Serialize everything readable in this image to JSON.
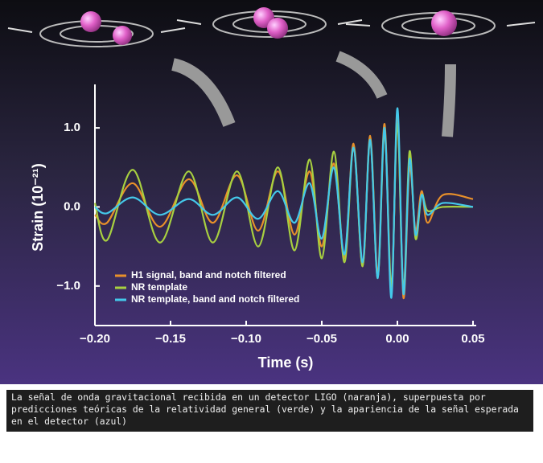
{
  "chart_data": {
    "type": "line",
    "xlabel": "Time (s)",
    "ylabel": "Strain (10⁻²¹)",
    "x": [
      -0.2,
      -0.192,
      -0.175,
      -0.157,
      -0.138,
      -0.122,
      -0.106,
      -0.092,
      -0.079,
      -0.068,
      -0.058,
      -0.05,
      -0.042,
      -0.035,
      -0.029,
      -0.023,
      -0.018,
      -0.013,
      -0.0085,
      -0.004,
      0,
      0.004,
      0.008,
      0.012,
      0.016,
      0.02,
      0.03,
      0.05
    ],
    "series": [
      {
        "name": "H1 signal, band and notch filtered",
        "color": "#e8902a",
        "values": [
          -0.1,
          -0.2,
          0.3,
          -0.25,
          0.35,
          -0.2,
          0.4,
          -0.3,
          0.45,
          -0.35,
          0.45,
          -0.5,
          0.55,
          -0.65,
          0.8,
          -0.75,
          0.9,
          -0.85,
          1.05,
          -1.1,
          1.15,
          -1.15,
          0.5,
          -0.3,
          0.2,
          -0.2,
          0.15,
          0.1
        ]
      },
      {
        "name": "NR template",
        "color": "#a8d040",
        "values": [
          0.05,
          -0.42,
          0.47,
          -0.45,
          0.45,
          -0.45,
          0.45,
          -0.5,
          0.5,
          -0.55,
          0.6,
          -0.65,
          0.7,
          -0.7,
          0.75,
          -0.75,
          0.85,
          -0.9,
          0.95,
          -1.0,
          1.05,
          -1.05,
          0.7,
          -0.4,
          0.15,
          -0.05,
          0.0,
          0.0
        ]
      },
      {
        "name": "NR template, band and notch filtered",
        "color": "#44c8ea",
        "values": [
          0.0,
          -0.08,
          0.12,
          -0.1,
          0.1,
          -0.1,
          0.12,
          -0.15,
          0.2,
          -0.2,
          0.3,
          -0.4,
          0.5,
          -0.6,
          0.75,
          -0.7,
          0.85,
          -0.9,
          1.0,
          -1.15,
          1.25,
          -1.1,
          0.6,
          -0.35,
          0.15,
          -0.1,
          0.05,
          0.0
        ]
      }
    ],
    "xlim": [
      -0.2,
      0.05
    ],
    "xticks": [
      {
        "value": -0.2,
        "label": "−0.20"
      },
      {
        "value": -0.15,
        "label": "−0.15"
      },
      {
        "value": -0.1,
        "label": "−0.10"
      },
      {
        "value": -0.05,
        "label": "−0.05"
      },
      {
        "value": 0,
        "label": "0.00"
      },
      {
        "value": 0.05,
        "label": "0.05"
      }
    ],
    "ylim": [
      -1.5,
      1.55
    ],
    "yticks": [
      {
        "value": -1,
        "label": "−1.0"
      },
      {
        "value": 0,
        "label": "0.0"
      },
      {
        "value": 1,
        "label": "1.0"
      }
    ],
    "legend": "lower left",
    "grid": false,
    "caption": "La señal de onda gravitacional recibida en un detector LIGO (naranja), superpuesta por predicciones teóricas de la relatividad general (verde) y la apariencia de la señal esperada en el detector (azul)"
  }
}
